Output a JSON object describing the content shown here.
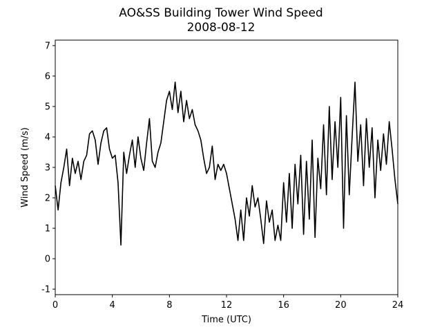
{
  "chart_data": {
    "type": "line",
    "title": "AO&SS Building Tower Wind Speed",
    "subtitle": "2008-08-12",
    "xlabel": "Time (UTC)",
    "ylabel": "Wind Speed (m/s)",
    "x": [
      0.0,
      0.2,
      0.4,
      0.6,
      0.8,
      1.0,
      1.2,
      1.4,
      1.6,
      1.8,
      2.0,
      2.2,
      2.4,
      2.6,
      2.8,
      3.0,
      3.2,
      3.4,
      3.6,
      3.8,
      4.0,
      4.2,
      4.4,
      4.6,
      4.8,
      5.0,
      5.2,
      5.4,
      5.6,
      5.8,
      6.0,
      6.2,
      6.4,
      6.6,
      6.8,
      7.0,
      7.2,
      7.4,
      7.6,
      7.8,
      8.0,
      8.2,
      8.4,
      8.6,
      8.8,
      9.0,
      9.2,
      9.4,
      9.6,
      9.8,
      10.0,
      10.2,
      10.4,
      10.6,
      10.8,
      11.0,
      11.2,
      11.4,
      11.6,
      11.8,
      12.0,
      12.2,
      12.4,
      12.6,
      12.8,
      13.0,
      13.2,
      13.4,
      13.6,
      13.8,
      14.0,
      14.2,
      14.4,
      14.6,
      14.8,
      15.0,
      15.2,
      15.4,
      15.6,
      15.8,
      16.0,
      16.2,
      16.4,
      16.6,
      16.8,
      17.0,
      17.2,
      17.4,
      17.6,
      17.8,
      18.0,
      18.2,
      18.4,
      18.6,
      18.8,
      19.0,
      19.2,
      19.4,
      19.6,
      19.8,
      20.0,
      20.2,
      20.4,
      20.6,
      20.8,
      21.0,
      21.2,
      21.4,
      21.6,
      21.8,
      22.0,
      22.2,
      22.4,
      22.6,
      22.8,
      23.0,
      23.2,
      23.4,
      23.6,
      23.8,
      24.0
    ],
    "series": [
      {
        "name": "Wind Speed",
        "color": "#000000",
        "values": [
          2.4,
          1.6,
          2.5,
          3.0,
          3.6,
          2.4,
          3.3,
          2.8,
          3.2,
          2.6,
          3.2,
          3.4,
          4.1,
          4.2,
          3.9,
          3.1,
          3.8,
          4.2,
          4.3,
          3.6,
          3.3,
          3.4,
          2.5,
          0.45,
          3.5,
          2.8,
          3.4,
          3.9,
          3.0,
          4.0,
          3.3,
          2.9,
          3.8,
          4.6,
          3.2,
          3.0,
          3.5,
          3.8,
          4.5,
          5.2,
          5.5,
          4.9,
          5.8,
          4.8,
          5.5,
          4.5,
          5.2,
          4.6,
          4.9,
          4.4,
          4.2,
          3.9,
          3.3,
          2.8,
          3.0,
          3.7,
          2.6,
          3.1,
          2.9,
          3.1,
          2.8,
          2.3,
          1.8,
          1.3,
          0.6,
          1.6,
          0.6,
          2.0,
          1.4,
          2.4,
          1.7,
          2.0,
          1.3,
          0.5,
          1.9,
          1.2,
          1.6,
          0.6,
          1.1,
          0.6,
          2.5,
          1.2,
          2.8,
          1.0,
          3.1,
          1.8,
          3.4,
          0.8,
          3.2,
          1.3,
          3.9,
          0.7,
          3.3,
          2.3,
          4.4,
          2.1,
          5.0,
          2.6,
          4.5,
          3.0,
          5.3,
          1.0,
          4.7,
          2.1,
          4.0,
          5.8,
          3.2,
          4.4,
          2.4,
          4.6,
          3.0,
          4.3,
          2.0,
          3.9,
          2.9,
          4.1,
          3.1,
          4.5,
          3.6,
          2.6,
          1.8
        ]
      }
    ],
    "xlim": [
      0,
      24
    ],
    "xticks": [
      0,
      4,
      8,
      12,
      16,
      20,
      24
    ],
    "ylim": [
      -1.18,
      7.18
    ],
    "yticks": [
      -1,
      0,
      1,
      2,
      3,
      4,
      5,
      6,
      7
    ],
    "grid": false
  }
}
